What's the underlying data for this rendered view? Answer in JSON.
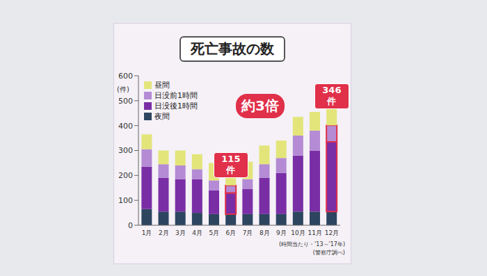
{
  "chart_data": {
    "type": "bar",
    "title": "死亡事故の数",
    "y_label": "(件)",
    "stacked": true,
    "grid": false,
    "legend": "upper left",
    "categories": [
      "1月",
      "2月",
      "3月",
      "4月",
      "5月",
      "6月",
      "7月",
      "8月",
      "9月",
      "10月",
      "11月",
      "12月"
    ],
    "series": [
      {
        "name": "昼間",
        "color": "#e3e57a",
        "values": [
          60,
          55,
          60,
          60,
          70,
          60,
          70,
          75,
          70,
          75,
          75,
          95
        ]
      },
      {
        "name": "日没前1時間",
        "color": "#b48bd4",
        "values": [
          70,
          55,
          55,
          40,
          40,
          30,
          40,
          55,
          60,
          80,
          80,
          66
        ]
      },
      {
        "name": "日没後1時間",
        "color": "#7a2ea6",
        "values": [
          170,
          135,
          130,
          135,
          95,
          85,
          100,
          145,
          165,
          225,
          245,
          280
        ]
      },
      {
        "name": "夜間",
        "color": "#2e4560",
        "values": [
          65,
          55,
          55,
          50,
          45,
          45,
          45,
          45,
          45,
          55,
          55,
          55
        ]
      }
    ],
    "ylim": [
      0,
      600
    ],
    "yticks": [
      0,
      100,
      200,
      300,
      400,
      500,
      600
    ],
    "annotations": [
      {
        "text": "115件",
        "category": "6月"
      },
      {
        "text": "約3倍"
      },
      {
        "text": "346件",
        "category": "12月"
      }
    ],
    "notes": [
      "(時間当たり・'13～'17年)",
      "(警察庁調べ)"
    ]
  }
}
